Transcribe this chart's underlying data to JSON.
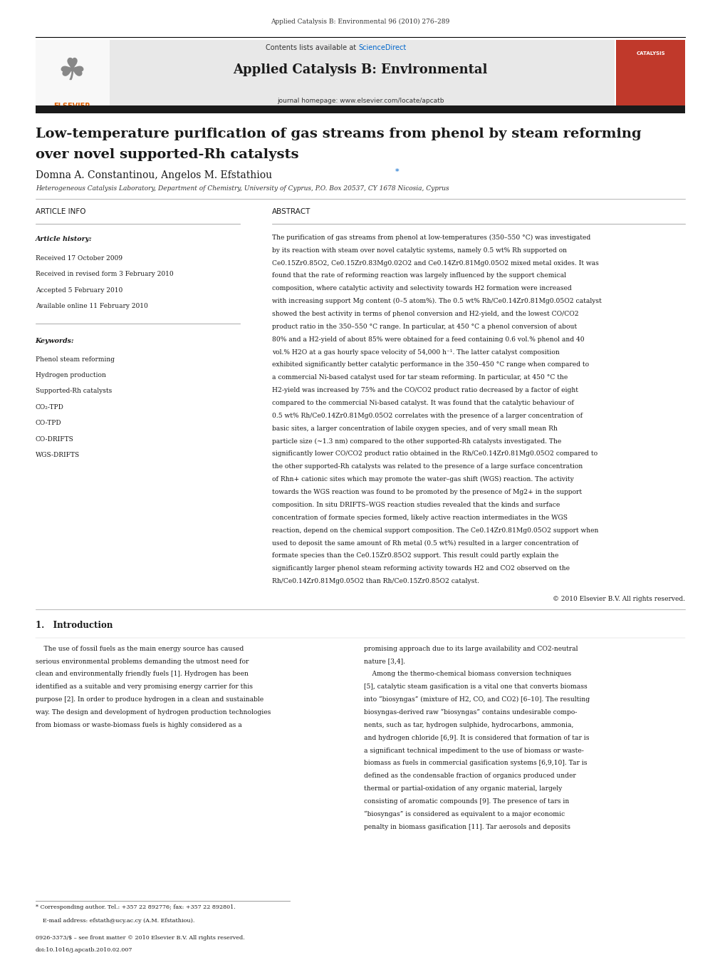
{
  "page_width": 9.92,
  "page_height": 13.23,
  "dpi": 100,
  "background_color": "#ffffff",
  "top_journal_ref": "Applied Catalysis B: Environmental 96 (2010) 276–289",
  "header_bg_color": "#e8e8e8",
  "header_contents_text": "Contents lists available at ",
  "header_sciencedirect_text": "ScienceDirect",
  "sciencedirect_color": "#0066cc",
  "journal_name": "Applied Catalysis B: Environmental",
  "journal_homepage": "journal homepage: www.elsevier.com/locate/apcatb",
  "thick_bar_color": "#1a1a1a",
  "paper_title_line1": "Low-temperature purification of gas streams from phenol by steam reforming",
  "paper_title_line2": "over novel supported-Rh catalysts",
  "authors": "Domna A. Constantinou, Angelos M. Efstathiou",
  "affiliation": "Heterogeneous Catalysis Laboratory, Department of Chemistry, University of Cyprus, P.O. Box 20537, CY 1678 Nicosia, Cyprus",
  "article_info_header": "ARTICLE INFO",
  "abstract_header": "ABSTRACT",
  "article_history_label": "Article history:",
  "received1": "Received 17 October 2009",
  "received2": "Received in revised form 3 February 2010",
  "accepted": "Accepted 5 February 2010",
  "available": "Available online 11 February 2010",
  "keywords_label": "Keywords:",
  "keywords": [
    "Phenol steam reforming",
    "Hydrogen production",
    "Supported-Rh catalysts",
    "CO₂-TPD",
    "CO-TPD",
    "CO-DRIFTS",
    "WGS-DRIFTS"
  ],
  "abstract_text": "The purification of gas streams from phenol at low-temperatures (350–550 °C) was investigated by its reaction with steam over novel catalytic systems, namely 0.5 wt% Rh supported on Ce0.15Zr0.85O2, Ce0.15Zr0.83Mg0.02O2 and Ce0.14Zr0.81Mg0.05O2 mixed metal oxides. It was found that the rate of reforming reaction was largely influenced by the support chemical composition, where catalytic activity and selectivity towards H2 formation were increased with increasing support Mg content (0–5 atom%). The 0.5 wt% Rh/Ce0.14Zr0.81Mg0.05O2 catalyst showed the best activity in terms of phenol conversion and H2-yield, and the lowest CO/CO2 product ratio in the 350–550 °C range. In particular, at 450 °C a phenol conversion of about 80% and a H2-yield of about 85% were obtained for a feed containing 0.6 vol.% phenol and 40 vol.% H2O at a gas hourly space velocity of 54,000 h⁻¹. The latter catalyst composition exhibited significantly better catalytic performance in the 350–450 °C range when compared to a commercial Ni-based catalyst used for tar steam reforming. In particular, at 450 °C the H2-yield was increased by 75% and the CO/CO2 product ratio decreased by a factor of eight compared to the commercial Ni-based catalyst. It was found that the catalytic behaviour of 0.5 wt% Rh/Ce0.14Zr0.81Mg0.05O2 correlates with the presence of a larger concentration of basic sites, a larger concentration of labile oxygen species, and of very small mean Rh particle size (~1.3 nm) compared to the other supported-Rh catalysts investigated. The significantly lower CO/CO2 product ratio obtained in the Rh/Ce0.14Zr0.81Mg0.05O2 compared to the other supported-Rh catalysts was related to the presence of a large surface concentration of Rhn+ cationic sites which may promote the water–gas shift (WGS) reaction. The activity towards the WGS reaction was found to be promoted by the presence of Mg2+ in the support composition. In situ DRIFTS–WGS reaction studies revealed that the kinds and surface concentration of formate species formed, likely active reaction intermediates in the WGS reaction, depend on the chemical support composition. The Ce0.14Zr0.81Mg0.05O2 support when used to deposit the same amount of Rh metal (0.5 wt%) resulted in a larger concentration of formate species than the Ce0.15Zr0.85O2 support. This result could partly explain the significantly larger phenol steam reforming activity towards H2 and CO2 observed on the Rh/Ce0.14Zr0.81Mg0.05O2 than Rh/Ce0.15Zr0.85O2 catalyst.",
  "copyright_text": "© 2010 Elsevier B.V. All rights reserved.",
  "section1_header": "1.   Introduction",
  "intro_col1_lines": [
    "    The use of fossil fuels as the main energy source has caused",
    "serious environmental problems demanding the utmost need for",
    "clean and environmentally friendly fuels [1]. Hydrogen has been",
    "identified as a suitable and very promising energy carrier for this",
    "purpose [2]. In order to produce hydrogen in a clean and sustainable",
    "way. The design and development of hydrogen production technologies",
    "from biomass or waste-biomass fuels is highly considered as a"
  ],
  "intro_col2_lines": [
    "promising approach due to its large availability and CO2-neutral",
    "nature [3,4].",
    "    Among the thermo-chemical biomass conversion techniques",
    "[5], catalytic steam gasification is a vital one that converts biomass",
    "into “biosyngas” (mixture of H2, CO, and CO2) [6–10]. The resulting",
    "biosyngas-derived raw “biosyngas” contains undesirable compo-",
    "nents, such as tar, hydrogen sulphide, hydrocarbons, ammonia,",
    "and hydrogen chloride [6,9]. It is considered that formation of tar is",
    "a significant technical impediment to the use of biomass or waste-",
    "biomass as fuels in commercial gasification systems [6,9,10]. Tar is",
    "defined as the condensable fraction of organics produced under",
    "thermal or partial-oxidation of any organic material, largely",
    "consisting of aromatic compounds [9]. The presence of tars in",
    "“biosyngas” is considered as equivalent to a major economic",
    "penalty in biomass gasification [11]. Tar aerosols and deposits"
  ],
  "footnote1": "* Corresponding author. Tel.: +357 22 892776; fax: +357 22 892801.",
  "footnote2": "    E-mail address: efstath@ucy.ac.cy (A.M. Efstathiou).",
  "footnote3": "0926-3373/$ – see front matter © 2010 Elsevier B.V. All rights reserved.",
  "footnote4": "doi:10.1016/j.apcatb.2010.02.007"
}
